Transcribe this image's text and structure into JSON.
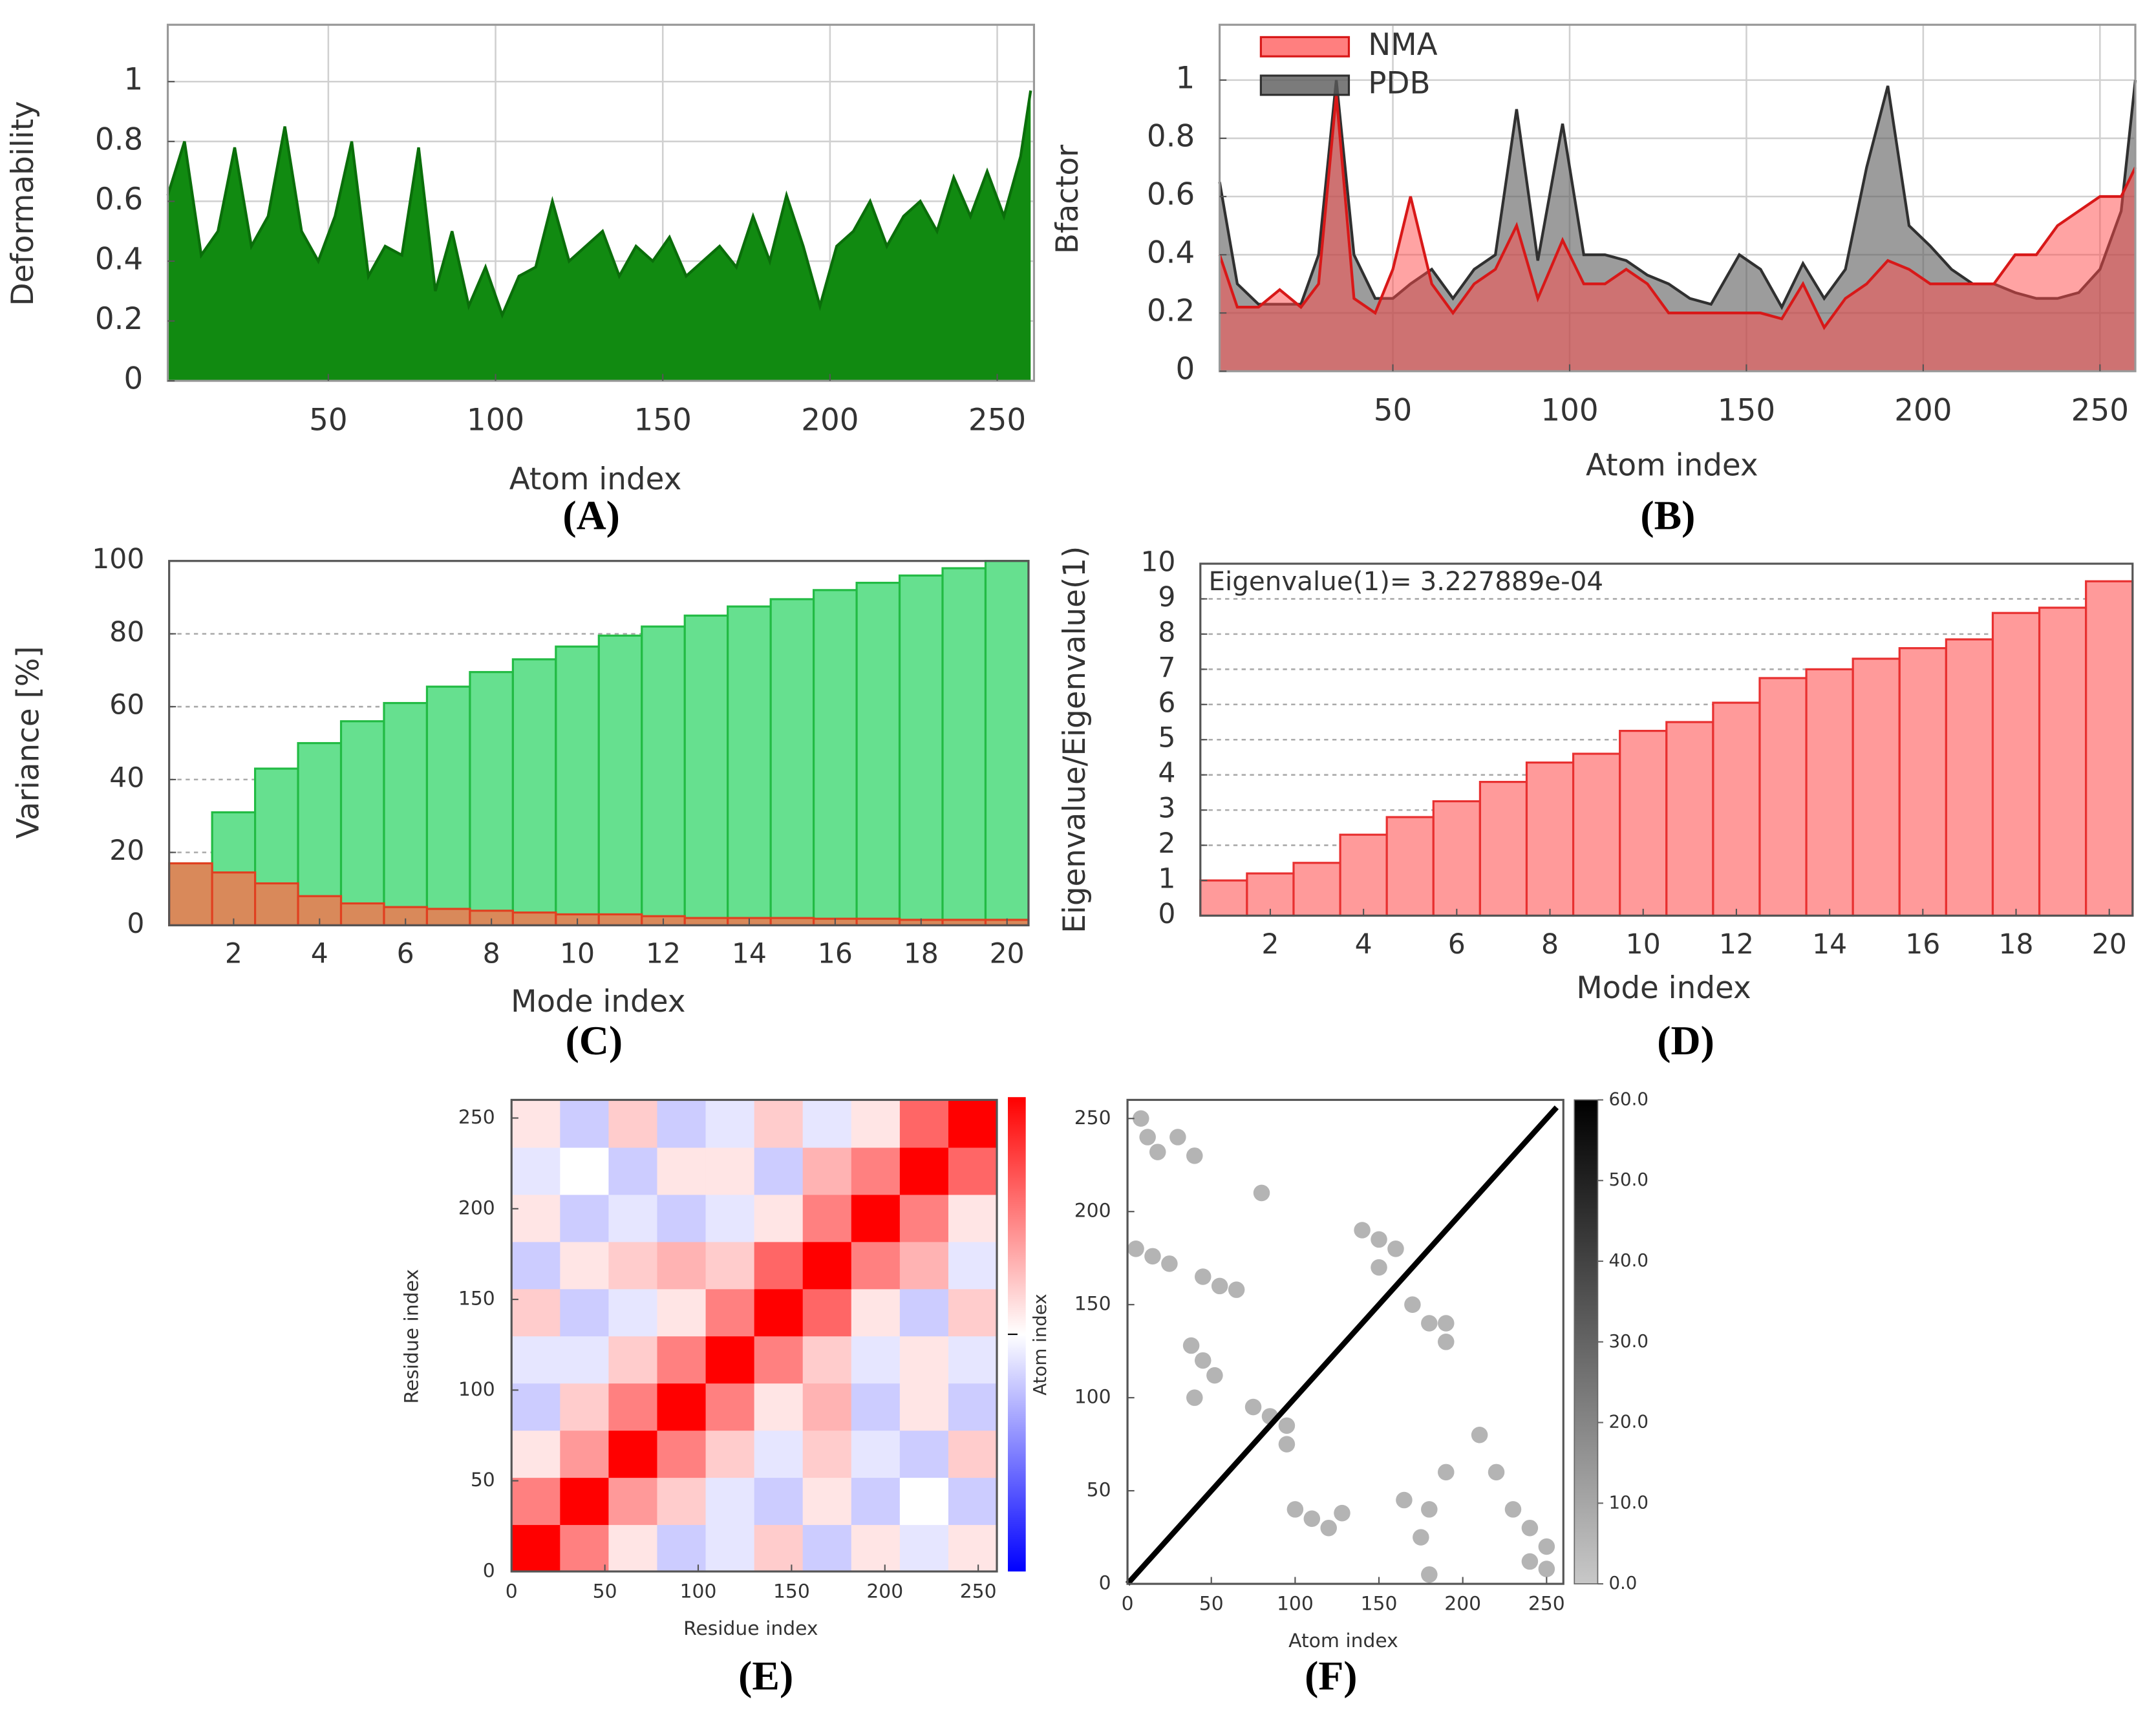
{
  "chart_data": [
    {
      "type": "area",
      "label": "(A)",
      "xlabel": "Atom index",
      "ylabel": "Deformability",
      "color": "#118a11",
      "edgecolor": "#0a6e0a",
      "alpha": 1,
      "grid": true,
      "x": [
        2,
        7,
        12,
        17,
        22,
        27,
        32,
        37,
        42,
        47,
        52,
        57,
        62,
        67,
        72,
        77,
        82,
        87,
        92,
        97,
        102,
        107,
        112,
        117,
        122,
        127,
        132,
        137,
        142,
        147,
        152,
        157,
        162,
        167,
        172,
        177,
        182,
        187,
        192,
        197,
        202,
        207,
        212,
        217,
        222,
        227,
        232,
        237,
        242,
        247,
        252,
        257,
        260
      ],
      "values": [
        0.62,
        0.8,
        0.42,
        0.5,
        0.78,
        0.45,
        0.55,
        0.85,
        0.5,
        0.4,
        0.55,
        0.8,
        0.35,
        0.45,
        0.42,
        0.78,
        0.3,
        0.5,
        0.25,
        0.38,
        0.22,
        0.35,
        0.38,
        0.6,
        0.4,
        0.45,
        0.5,
        0.35,
        0.45,
        0.4,
        0.48,
        0.35,
        0.4,
        0.45,
        0.38,
        0.55,
        0.4,
        0.62,
        0.45,
        0.25,
        0.45,
        0.5,
        0.6,
        0.45,
        0.55,
        0.6,
        0.5,
        0.68,
        0.55,
        0.7,
        0.55,
        0.75,
        0.97
      ],
      "xlim": [
        2,
        261
      ],
      "ylim": [
        0,
        1.19
      ],
      "xticks": [
        50,
        100,
        150,
        200,
        250
      ],
      "yticks": [
        0,
        0.2,
        0.4,
        0.6,
        0.8,
        1
      ]
    },
    {
      "type": "area",
      "label": "(B)",
      "xlabel": "Atom index",
      "ylabel": "Bfactor",
      "grid": true,
      "legend": "upper left",
      "x": [
        1,
        6,
        12,
        18,
        24,
        29,
        34,
        39,
        45,
        50,
        55,
        61,
        67,
        73,
        79,
        85,
        91,
        98,
        104,
        110,
        116,
        122,
        128,
        134,
        140,
        148,
        154,
        160,
        166,
        172,
        178,
        184,
        190,
        196,
        202,
        208,
        214,
        220,
        226,
        232,
        238,
        244,
        250,
        256,
        260
      ],
      "series": [
        {
          "name": "PDB",
          "color": "#5a5a5a",
          "edgecolor": "#303030",
          "alpha": 0.6,
          "values": [
            0.65,
            0.3,
            0.23,
            0.23,
            0.23,
            0.4,
            1.0,
            0.4,
            0.25,
            0.25,
            0.3,
            0.35,
            0.25,
            0.35,
            0.4,
            0.9,
            0.38,
            0.85,
            0.4,
            0.4,
            0.38,
            0.33,
            0.3,
            0.25,
            0.23,
            0.4,
            0.35,
            0.22,
            0.37,
            0.25,
            0.35,
            0.7,
            0.98,
            0.5,
            0.43,
            0.35,
            0.3,
            0.3,
            0.27,
            0.25,
            0.25,
            0.27,
            0.35,
            0.55,
            1.0
          ]
        },
        {
          "name": "NMA",
          "color": "#ff4848",
          "edgecolor": "#d81818",
          "alpha": 0.5,
          "values": [
            0.4,
            0.22,
            0.22,
            0.28,
            0.22,
            0.3,
            0.95,
            0.25,
            0.2,
            0.35,
            0.6,
            0.3,
            0.2,
            0.3,
            0.35,
            0.5,
            0.25,
            0.45,
            0.3,
            0.3,
            0.35,
            0.3,
            0.2,
            0.2,
            0.2,
            0.2,
            0.2,
            0.18,
            0.3,
            0.15,
            0.25,
            0.3,
            0.38,
            0.35,
            0.3,
            0.3,
            0.3,
            0.3,
            0.4,
            0.4,
            0.5,
            0.55,
            0.6,
            0.6,
            0.7
          ]
        }
      ],
      "xlim": [
        1,
        260
      ],
      "ylim": [
        0,
        1.19
      ],
      "xticks": [
        50,
        100,
        150,
        200,
        250
      ],
      "yticks": [
        0,
        0.2,
        0.4,
        0.6,
        0.8,
        1
      ]
    },
    {
      "type": "bar",
      "label": "(C)",
      "xlabel": "Mode index",
      "ylabel": "Variance [%]",
      "grid": "dotted",
      "x": [
        1,
        2,
        3,
        4,
        5,
        6,
        7,
        8,
        9,
        10,
        11,
        12,
        13,
        14,
        15,
        16,
        17,
        18,
        19,
        20
      ],
      "series": [
        {
          "color": "#66e08f",
          "edgecolor": "#22bb44",
          "values": [
            17,
            31,
            43,
            50,
            56,
            61,
            65.5,
            69.5,
            73,
            76.5,
            79.5,
            82,
            85,
            87.5,
            89.5,
            92,
            94,
            96,
            98,
            100
          ]
        },
        {
          "color": "#d9895a",
          "edgecolor": "#e04020",
          "values": [
            17,
            14.5,
            11.5,
            8,
            6,
            5,
            4.5,
            4,
            3.5,
            3,
            3,
            2.5,
            2,
            2,
            2,
            1.8,
            1.8,
            1.5,
            1.5,
            1.5
          ]
        }
      ],
      "xlim": [
        0.5,
        20.5
      ],
      "ylim": [
        0,
        100
      ],
      "xticks": [
        2,
        4,
        6,
        8,
        10,
        12,
        14,
        16,
        18,
        20
      ],
      "yticks": [
        0,
        20,
        40,
        60,
        80,
        100
      ]
    },
    {
      "type": "bar",
      "label": "(D)",
      "xlabel": "Mode index",
      "ylabel": "Eigenvalue/Eigenvalue(1)",
      "annotation": "Eigenvalue(1)= 3.227889e-04",
      "grid": "dotted",
      "x": [
        1,
        2,
        3,
        4,
        5,
        6,
        7,
        8,
        9,
        10,
        11,
        12,
        13,
        14,
        15,
        16,
        17,
        18,
        19,
        20
      ],
      "series": [
        {
          "color": "#ff9a9a",
          "edgecolor": "#e83030",
          "values": [
            1,
            1.2,
            1.5,
            2.3,
            2.8,
            3.25,
            3.8,
            4.35,
            4.6,
            5.25,
            5.5,
            6.05,
            6.75,
            7.0,
            7.3,
            7.6,
            7.85,
            8.6,
            8.75,
            9.5
          ]
        }
      ],
      "xlim": [
        0.5,
        20.5
      ],
      "ylim": [
        0,
        10
      ],
      "xticks": [
        2,
        4,
        6,
        8,
        10,
        12,
        14,
        16,
        18,
        20
      ],
      "yticks": [
        0,
        1,
        2,
        3,
        4,
        5,
        6,
        7,
        8,
        9,
        10
      ]
    },
    {
      "type": "heatmap",
      "label": "(E)",
      "xlabel": "Residue index",
      "ylabel": "Residue index",
      "colorbar_label": "Atom index",
      "x": [
        13,
        39,
        65,
        91,
        117,
        143,
        169,
        195,
        221,
        247
      ],
      "y": [
        13,
        39,
        65,
        91,
        117,
        143,
        169,
        195,
        221,
        247
      ],
      "z": [
        [
          1,
          0.5,
          0.1,
          -0.2,
          -0.1,
          0.2,
          -0.2,
          0.1,
          -0.1,
          0.1
        ],
        [
          0.5,
          1,
          0.4,
          0.2,
          -0.1,
          -0.2,
          0.1,
          -0.2,
          0,
          -0.2
        ],
        [
          0.1,
          0.4,
          1,
          0.5,
          0.2,
          -0.1,
          0.2,
          -0.1,
          -0.2,
          0.2
        ],
        [
          -0.2,
          0.2,
          0.5,
          1,
          0.5,
          0.1,
          0.3,
          -0.2,
          0.1,
          -0.2
        ],
        [
          -0.1,
          -0.1,
          0.2,
          0.5,
          1,
          0.5,
          0.2,
          -0.1,
          0.1,
          -0.1
        ],
        [
          0.2,
          -0.2,
          -0.1,
          0.1,
          0.5,
          1,
          0.6,
          0.1,
          -0.2,
          0.2
        ],
        [
          -0.2,
          0.1,
          0.2,
          0.3,
          0.2,
          0.6,
          1,
          0.5,
          0.3,
          -0.1
        ],
        [
          0.1,
          -0.2,
          -0.1,
          -0.2,
          -0.1,
          0.1,
          0.5,
          1,
          0.5,
          0.1
        ],
        [
          -0.1,
          0,
          -0.2,
          0.1,
          0.1,
          -0.2,
          0.3,
          0.5,
          1,
          0.6
        ],
        [
          0.1,
          -0.2,
          0.2,
          -0.2,
          -0.1,
          0.2,
          -0.1,
          0.1,
          0.6,
          1
        ]
      ],
      "zlim": [
        -1,
        1
      ],
      "xlim": [
        0,
        260
      ],
      "ylim": [
        0,
        260
      ],
      "xticks": [
        0,
        50,
        100,
        150,
        200,
        250
      ],
      "yticks": [
        0,
        50,
        100,
        150,
        200,
        250
      ]
    },
    {
      "type": "scatter",
      "label": "(F)",
      "xlabel": "Atom index",
      "color": "#b4b4b4",
      "x": [
        8,
        12,
        18,
        5,
        15,
        25,
        45,
        55,
        65,
        38,
        45,
        52,
        100,
        110,
        120,
        75,
        85,
        95,
        140,
        150,
        160,
        170,
        180,
        190,
        210,
        220,
        230,
        240,
        250,
        180,
        175,
        190,
        250,
        240,
        180,
        165,
        128,
        40,
        95,
        190,
        150,
        80,
        40,
        30
      ],
      "values": [
        250,
        240,
        232,
        180,
        176,
        172,
        165,
        160,
        158,
        128,
        120,
        112,
        40,
        35,
        30,
        95,
        90,
        85,
        190,
        185,
        180,
        150,
        140,
        130,
        80,
        60,
        40,
        30,
        20,
        40,
        25,
        60,
        8,
        12,
        5,
        45,
        38,
        100,
        75,
        140,
        170,
        210,
        230,
        240
      ],
      "line": {
        "x": [
          0,
          256
        ],
        "values": [
          0,
          256
        ]
      },
      "zlim": [
        0,
        60
      ],
      "zticks": [
        {
          "value": 0,
          "label": "0.0"
        },
        {
          "value": 10,
          "label": "10.0"
        },
        {
          "value": 20,
          "label": "20.0"
        },
        {
          "value": 30,
          "label": "30.0"
        },
        {
          "value": 40,
          "label": "40.0"
        },
        {
          "value": 50,
          "label": "50.0"
        },
        {
          "value": 60,
          "label": "60.0"
        }
      ],
      "xlim": [
        0,
        260
      ],
      "ylim": [
        0,
        260
      ],
      "xticks": [
        0,
        50,
        100,
        150,
        200,
        250
      ],
      "yticks": [
        0,
        50,
        100,
        150,
        200,
        250
      ]
    }
  ]
}
